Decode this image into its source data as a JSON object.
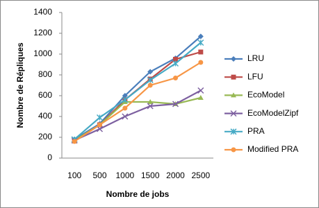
{
  "chart_data": {
    "type": "line",
    "x_label": "Nombre de jobs",
    "y_label": "Nombre de Répliques",
    "categories": [
      "100",
      "500",
      "1000",
      "1500",
      "2000",
      "2500"
    ],
    "ylim": [
      0,
      1400
    ],
    "yticks": [
      0,
      200,
      400,
      600,
      800,
      1000,
      1200,
      1400
    ],
    "grid": false,
    "legend": "right",
    "series": [
      {
        "name": "LRU",
        "color": "#4a7ebb",
        "values": [
          180,
          330,
          600,
          830,
          960,
          1170
        ]
      },
      {
        "name": "LFU",
        "color": "#be4b48",
        "values": [
          165,
          320,
          560,
          760,
          950,
          1020
        ]
      },
      {
        "name": "EcoModel",
        "color": "#98b954",
        "values": [
          170,
          320,
          540,
          540,
          520,
          580
        ]
      },
      {
        "name": "EcoModelZipf",
        "color": "#7d60a0",
        "values": [
          170,
          280,
          400,
          500,
          520,
          650
        ]
      },
      {
        "name": "PRA",
        "color": "#46aac5",
        "values": [
          180,
          390,
          560,
          750,
          910,
          1110
        ]
      },
      {
        "name": "Modified PRA",
        "color": "#f79646",
        "values": [
          160,
          320,
          480,
          700,
          770,
          920
        ]
      }
    ]
  }
}
